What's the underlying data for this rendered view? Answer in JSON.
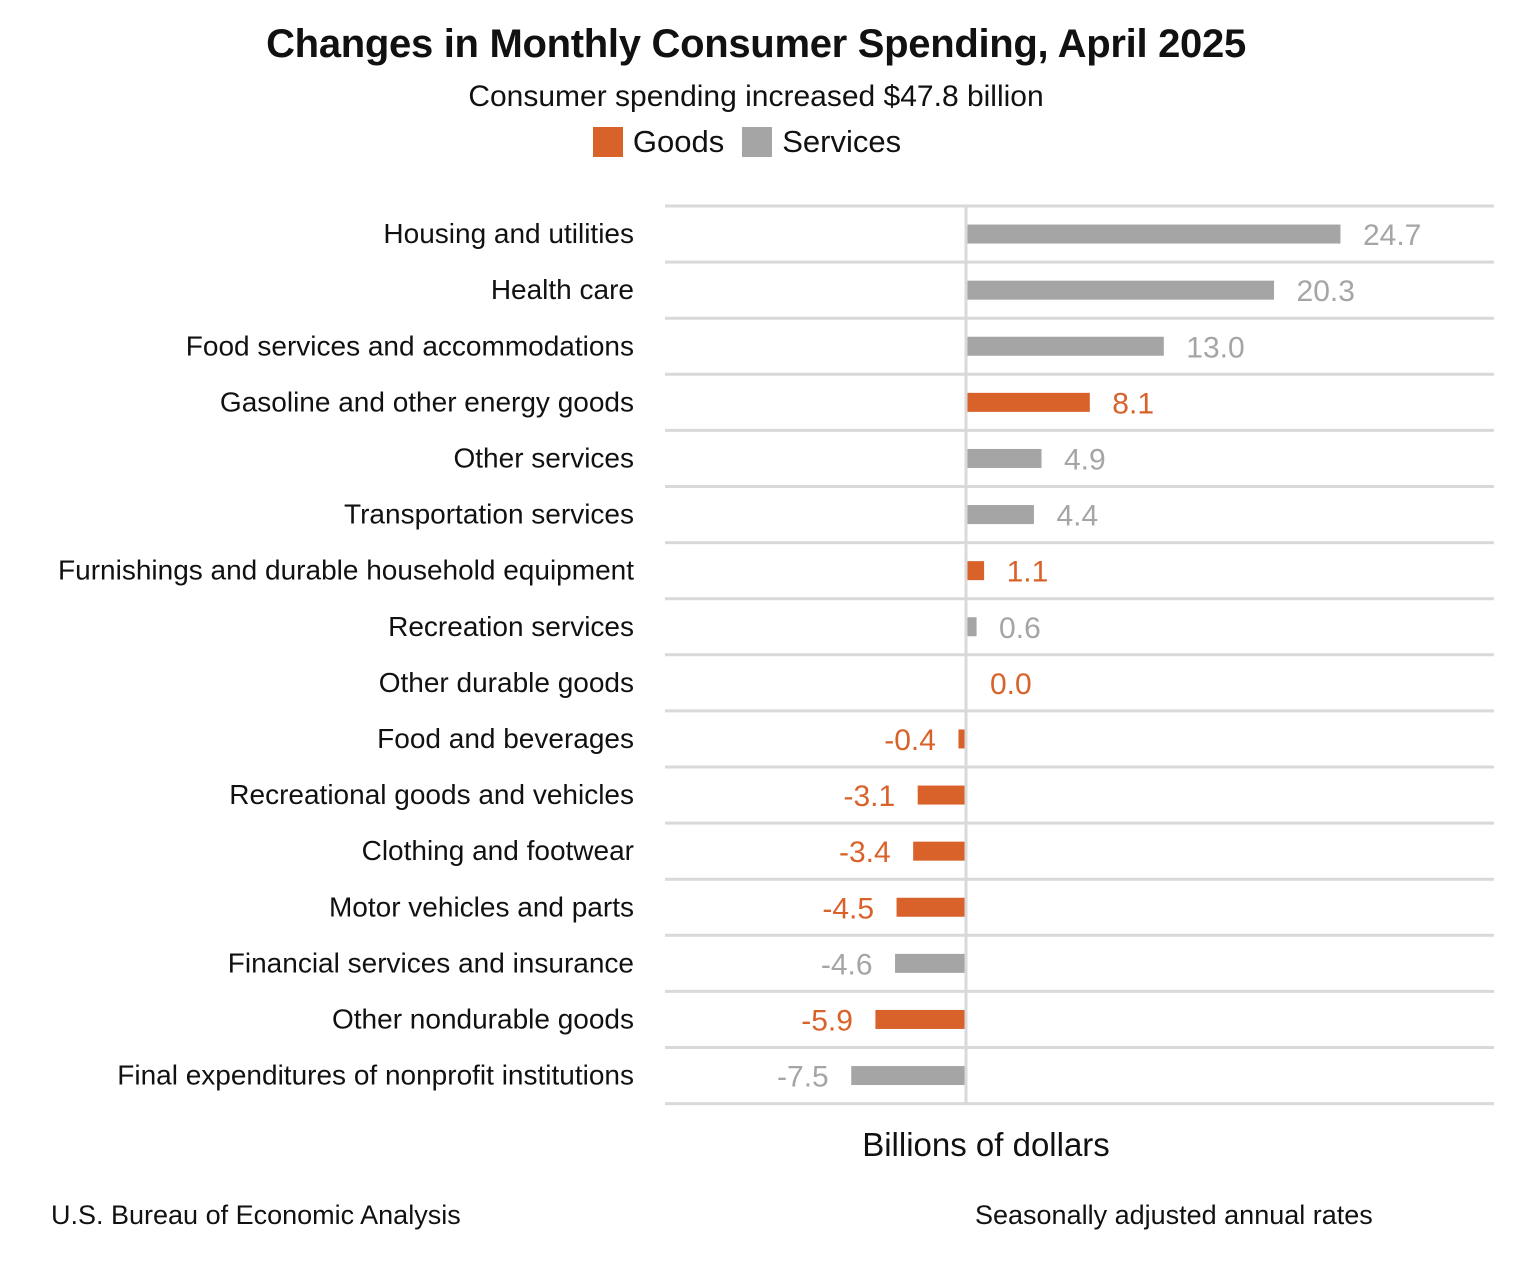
{
  "chart_data": {
    "type": "bar",
    "orientation": "horizontal",
    "title": "Changes in Monthly Consumer Spending, April 2025",
    "subtitle": "Consumer spending increased $47.8 billion",
    "xlabel": "Billions of dollars",
    "xlim": [
      -14.8,
      28.5
    ],
    "grid": true,
    "legend_position": "top-center",
    "legend": [
      {
        "name": "Goods",
        "color": "#D9622B"
      },
      {
        "name": "Services",
        "color": "#A5A5A5"
      }
    ],
    "categories": [
      "Housing and utilities",
      "Health care",
      "Food services and accommodations",
      "Gasoline and other energy goods",
      "Other services",
      "Transportation services",
      "Furnishings and durable household equipment",
      "Recreation services",
      "Other durable goods",
      "Food and beverages",
      "Recreational goods and vehicles",
      "Clothing and footwear",
      "Motor vehicles and parts",
      "Financial services and insurance",
      "Other nondurable goods",
      "Final expenditures of nonprofit institutions"
    ],
    "values": [
      24.7,
      20.3,
      13.0,
      8.1,
      4.9,
      4.4,
      1.1,
      0.6,
      0.0,
      -0.4,
      -3.1,
      -3.4,
      -4.5,
      -4.6,
      -5.9,
      -7.5
    ],
    "value_labels": [
      "24.7",
      "20.3",
      "13.0",
      "8.1",
      "4.9",
      "4.4",
      "1.1",
      "0.6",
      "0.0",
      "-0.4",
      "-3.1",
      "-3.4",
      "-4.5",
      "-4.6",
      "-5.9",
      "-7.5"
    ],
    "types": [
      "Services",
      "Services",
      "Services",
      "Goods",
      "Services",
      "Services",
      "Goods",
      "Services",
      "Goods",
      "Goods",
      "Goods",
      "Goods",
      "Goods",
      "Services",
      "Goods",
      "Services"
    ]
  },
  "colors": {
    "goods": "#D9622B",
    "services": "#A5A5A5",
    "gridline": "#D9D9D9"
  },
  "footer": {
    "source": "U.S. Bureau of Economic Analysis",
    "note": "Seasonally adjusted annual rates"
  }
}
